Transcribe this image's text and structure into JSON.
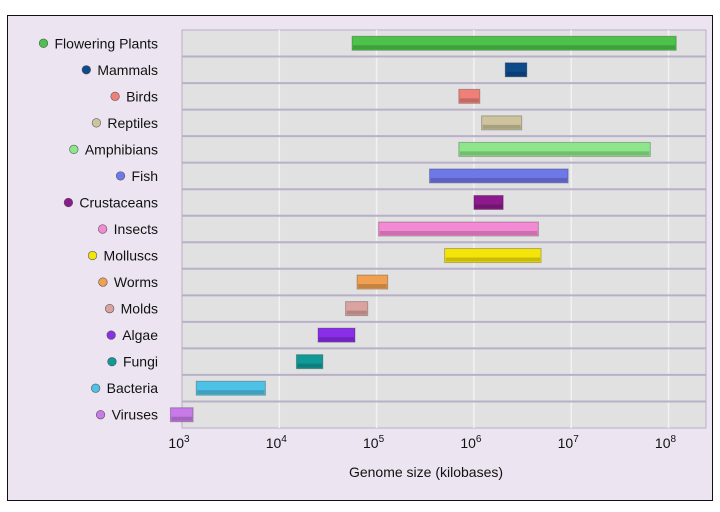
{
  "chart_data": {
    "type": "bar",
    "orientation": "horizontal-range",
    "xlabel": "Genome size (kilobases)",
    "xscale": "log",
    "xlim": [
      1000,
      100000000
    ],
    "xticks": [
      {
        "base": "10",
        "exp": "3"
      },
      {
        "base": "10",
        "exp": "4"
      },
      {
        "base": "10",
        "exp": "5"
      },
      {
        "base": "10",
        "exp": "6"
      },
      {
        "base": "10",
        "exp": "7"
      },
      {
        "base": "10",
        "exp": "8"
      }
    ],
    "grid": true,
    "legend": "left",
    "series": [
      {
        "name": "Flowering Plants",
        "min": 56000,
        "max": 120000000,
        "color": "#4cc24a"
      },
      {
        "name": "Mammals",
        "min": 2100000,
        "max": 3500000,
        "color": "#0d4b8a"
      },
      {
        "name": "Birds",
        "min": 700000,
        "max": 1150000,
        "color": "#f07f78"
      },
      {
        "name": "Reptiles",
        "min": 1200000,
        "max": 3100000,
        "color": "#cdc39c"
      },
      {
        "name": "Amphibians",
        "min": 700000,
        "max": 65000000,
        "color": "#8ee68a"
      },
      {
        "name": "Fish",
        "min": 350000,
        "max": 9300000,
        "color": "#6f78e8"
      },
      {
        "name": "Crustaceans",
        "min": 1000000,
        "max": 2000000,
        "color": "#8c1a8c"
      },
      {
        "name": "Insects",
        "min": 105000,
        "max": 4600000,
        "color": "#f58ad4"
      },
      {
        "name": "Molluscs",
        "min": 500000,
        "max": 4900000,
        "color": "#f5e40a"
      },
      {
        "name": "Worms",
        "min": 63000,
        "max": 130000,
        "color": "#f0a050"
      },
      {
        "name": "Molds",
        "min": 48000,
        "max": 81000,
        "color": "#dba3a0"
      },
      {
        "name": "Algae",
        "min": 25000,
        "max": 60000,
        "color": "#8a2ee8"
      },
      {
        "name": "Fungi",
        "min": 15000,
        "max": 28000,
        "color": "#0f9a98"
      },
      {
        "name": "Bacteria",
        "min": 1400,
        "max": 7200,
        "color": "#4ec2e6"
      },
      {
        "name": "Viruses",
        "min": 760,
        "max": 1300,
        "color": "#c77ae8"
      }
    ]
  }
}
